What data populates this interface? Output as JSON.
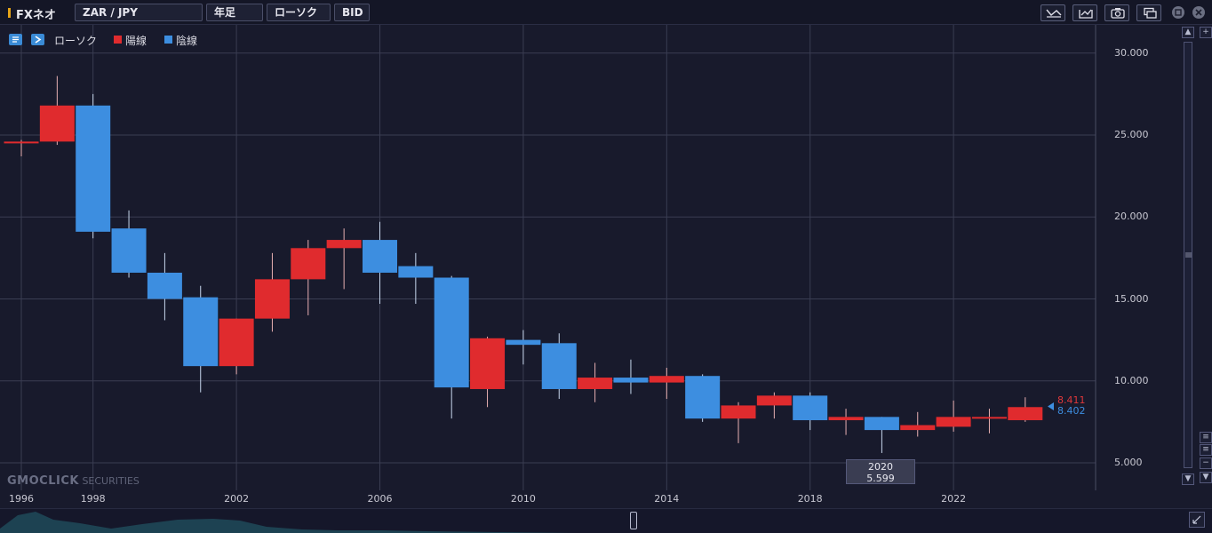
{
  "toolbar": {
    "app_title": "FXネオ",
    "symbol": "ZAR / JPY",
    "timeframe": "年足",
    "chart_type": "ローソク",
    "price_type": "BID",
    "icons": [
      "trend-line-icon",
      "chart-export-icon",
      "camera-icon",
      "window-icon",
      "maximize-icon",
      "close-icon"
    ]
  },
  "legend": {
    "series_label": "ローソク",
    "up_label": "陽線",
    "down_label": "陰線"
  },
  "colors": {
    "up": "#e02b2e",
    "down": "#3d8ee0",
    "background": "#181a2c",
    "grid": "#3a3d52",
    "accent": "#e6a417"
  },
  "watermark": {
    "brand": "GMOCLICK",
    "suffix": "SECURITIES"
  },
  "crosshair": {
    "year": "2020",
    "value": "5.599"
  },
  "last_prices": {
    "ask": "8.411",
    "bid": "8.402"
  },
  "chart_data": {
    "type": "candlestick",
    "title": "",
    "xlabel": "",
    "ylabel": "",
    "x_ticks": [
      "1996",
      "1998",
      "2002",
      "2006",
      "2010",
      "2014",
      "2018",
      "2022"
    ],
    "y_ticks": [
      "5.000",
      "10.000",
      "15.000",
      "20.000",
      "25.000",
      "30.000"
    ],
    "ylim": [
      3.0,
      31.5
    ],
    "xlim": [
      1995.4,
      2025.6
    ],
    "grid": true,
    "candles": [
      {
        "year": 1996,
        "open": 24.6,
        "high": 24.7,
        "low": 23.7,
        "close": 24.6
      },
      {
        "year": 1997,
        "open": 24.6,
        "high": 28.6,
        "low": 24.4,
        "close": 26.8
      },
      {
        "year": 1998,
        "open": 26.8,
        "high": 27.5,
        "low": 18.7,
        "close": 19.1
      },
      {
        "year": 1999,
        "open": 19.3,
        "high": 20.4,
        "low": 16.3,
        "close": 16.6
      },
      {
        "year": 2000,
        "open": 16.6,
        "high": 17.8,
        "low": 13.7,
        "close": 15.0
      },
      {
        "year": 2001,
        "open": 15.1,
        "high": 15.8,
        "low": 9.3,
        "close": 10.9
      },
      {
        "year": 2002,
        "open": 10.9,
        "high": 13.8,
        "low": 10.4,
        "close": 13.8
      },
      {
        "year": 2003,
        "open": 13.8,
        "high": 17.8,
        "low": 13.0,
        "close": 16.2
      },
      {
        "year": 2004,
        "open": 16.2,
        "high": 18.6,
        "low": 14.0,
        "close": 18.1
      },
      {
        "year": 2005,
        "open": 18.1,
        "high": 19.3,
        "low": 15.6,
        "close": 18.6
      },
      {
        "year": 2006,
        "open": 18.6,
        "high": 19.7,
        "low": 14.7,
        "close": 16.6
      },
      {
        "year": 2007,
        "open": 17.0,
        "high": 17.8,
        "low": 14.7,
        "close": 16.3
      },
      {
        "year": 2008,
        "open": 16.3,
        "high": 16.4,
        "low": 7.7,
        "close": 9.6
      },
      {
        "year": 2009,
        "open": 9.5,
        "high": 12.7,
        "low": 8.4,
        "close": 12.6
      },
      {
        "year": 2010,
        "open": 12.5,
        "high": 13.1,
        "low": 11.0,
        "close": 12.2
      },
      {
        "year": 2011,
        "open": 12.3,
        "high": 12.9,
        "low": 8.9,
        "close": 9.5
      },
      {
        "year": 2012,
        "open": 9.5,
        "high": 11.1,
        "low": 8.7,
        "close": 10.2
      },
      {
        "year": 2013,
        "open": 10.2,
        "high": 11.3,
        "low": 9.2,
        "close": 9.9
      },
      {
        "year": 2014,
        "open": 9.9,
        "high": 10.8,
        "low": 8.9,
        "close": 10.3
      },
      {
        "year": 2015,
        "open": 10.3,
        "high": 10.4,
        "low": 7.5,
        "close": 7.7
      },
      {
        "year": 2016,
        "open": 7.7,
        "high": 8.7,
        "low": 6.2,
        "close": 8.5
      },
      {
        "year": 2017,
        "open": 8.5,
        "high": 9.3,
        "low": 7.7,
        "close": 9.1
      },
      {
        "year": 2018,
        "open": 9.1,
        "high": 9.3,
        "low": 7.0,
        "close": 7.6
      },
      {
        "year": 2019,
        "open": 7.6,
        "high": 8.3,
        "low": 6.7,
        "close": 7.8
      },
      {
        "year": 2020,
        "open": 7.8,
        "high": 7.8,
        "low": 5.599,
        "close": 7.0
      },
      {
        "year": 2021,
        "open": 7.0,
        "high": 8.1,
        "low": 6.6,
        "close": 7.3
      },
      {
        "year": 2022,
        "open": 7.2,
        "high": 8.8,
        "low": 6.9,
        "close": 7.8
      },
      {
        "year": 2023,
        "open": 7.7,
        "high": 8.3,
        "low": 6.8,
        "close": 7.8
      },
      {
        "year": 2024,
        "open": 7.6,
        "high": 9.0,
        "low": 7.5,
        "close": 8.4
      }
    ]
  }
}
